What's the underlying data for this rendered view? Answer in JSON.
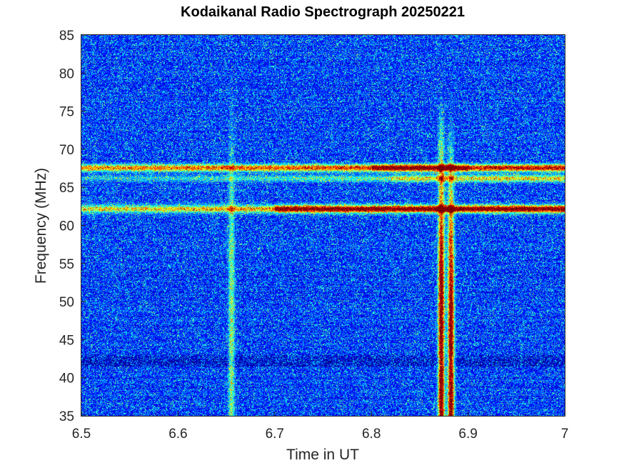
{
  "chart_data": {
    "type": "heatmap",
    "title": "Kodaikanal Radio Spectrograph  20250221",
    "xlabel": "Time in UT",
    "ylabel": "Frequency (MHz)",
    "xlim": [
      6.5,
      7.0
    ],
    "ylim": [
      35,
      85
    ],
    "x_ticks": [
      "6.5",
      "6.6",
      "6.7",
      "6.8",
      "6.9",
      "7"
    ],
    "x_tick_values": [
      6.5,
      6.6,
      6.7,
      6.8,
      6.9,
      7.0
    ],
    "y_ticks": [
      "35",
      "40",
      "45",
      "50",
      "55",
      "60",
      "65",
      "70",
      "75",
      "80",
      "85"
    ],
    "y_tick_values": [
      35,
      40,
      45,
      50,
      55,
      60,
      65,
      70,
      75,
      80,
      85
    ],
    "colormap": "jet",
    "background_color": "#0a2ab8",
    "features": {
      "horizontal_bands_mhz": [
        {
          "freq": 67.6,
          "t_start": 6.5,
          "t_end": 7.0,
          "intensity_low": 0.55,
          "intensity_high": 1.0,
          "t_peak": [
            6.8,
            6.9
          ]
        },
        {
          "freq": 66.2,
          "t_start": 6.5,
          "t_end": 7.0,
          "intensity_low": 0.15,
          "intensity_high": 0.45,
          "t_peak": [
            6.82,
            7.0
          ]
        },
        {
          "freq": 62.2,
          "t_start": 6.5,
          "t_end": 7.0,
          "intensity_low": 0.45,
          "intensity_high": 1.0,
          "t_peak": [
            6.7,
            7.0
          ]
        }
      ],
      "vertical_bursts_ut": [
        {
          "time": 6.872,
          "f_low": 35,
          "f_high": 78,
          "intensity": 1.0
        },
        {
          "time": 6.882,
          "f_low": 35,
          "f_high": 75,
          "intensity": 1.0
        },
        {
          "time": 6.655,
          "f_low": 35,
          "f_high": 80,
          "intensity": 0.35
        }
      ],
      "dark_band_mhz": [
        41.5,
        43.0
      ]
    }
  }
}
